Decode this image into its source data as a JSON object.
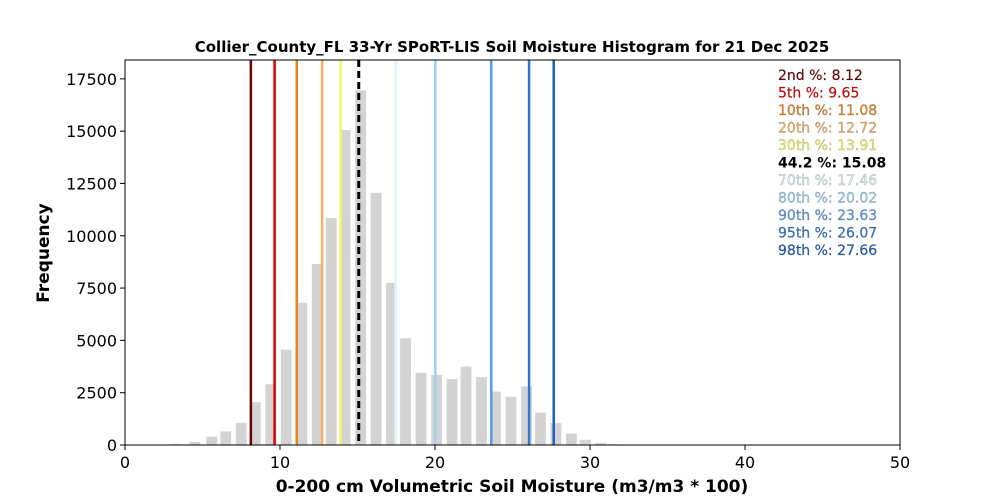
{
  "chart_data": {
    "type": "bar",
    "title": "Collier_County_FL 33-Yr SPoRT-LIS Soil Moisture Histogram for 21 Dec 2025",
    "xlabel": "0-200 cm Volumetric Soil Moisture (m3/m3 * 100)",
    "ylabel": "Frequency",
    "xlim": [
      0,
      50
    ],
    "ylim": [
      0,
      18400
    ],
    "xticks": [
      0,
      10,
      20,
      30,
      40,
      50
    ],
    "yticks": [
      0,
      2500,
      5000,
      7500,
      10000,
      12500,
      15000,
      17500
    ],
    "bar_color": "#d3d3d3",
    "bin_centers": [
      3.3,
      4.5,
      5.6,
      6.5,
      7.5,
      8.4,
      9.4,
      10.4,
      11.4,
      12.4,
      13.3,
      14.2,
      15.2,
      16.2,
      17.2,
      18.1,
      19.1,
      20.1,
      21.1,
      22.0,
      23.0,
      23.9,
      24.9,
      25.9,
      26.8,
      27.8,
      28.8,
      29.7,
      30.7,
      31.6
    ],
    "values": [
      40,
      150,
      400,
      650,
      1050,
      2050,
      2900,
      4550,
      6800,
      8650,
      10850,
      15050,
      16950,
      12050,
      7750,
      5100,
      3450,
      3350,
      3150,
      3750,
      3250,
      2550,
      2300,
      2800,
      1550,
      1050,
      550,
      250,
      100,
      30
    ],
    "reference_lines": [
      {
        "label": "2nd %",
        "value": 8.12,
        "color": "#6b0000",
        "text": "2nd %: 8.12",
        "dashed": false
      },
      {
        "label": "5th %",
        "value": 9.65,
        "color": "#dd0000",
        "text": "5th %: 9.65",
        "dashed": false
      },
      {
        "label": "10th %",
        "value": 11.08,
        "color": "#e8821e",
        "text": "10th %: 11.08",
        "dashed": false
      },
      {
        "label": "20th %",
        "value": 12.72,
        "color": "#f5b266",
        "text": "20th %: 12.72",
        "dashed": false
      },
      {
        "label": "30th %",
        "value": 13.91,
        "color": "#f5f56a",
        "text": "30th %: 13.91",
        "dashed": false
      },
      {
        "label": "44.2 %",
        "value": 15.08,
        "color": "#000000",
        "text": "44.2 %: 15.08",
        "dashed": true
      },
      {
        "label": "70th %",
        "value": 17.46,
        "color": "#dff5f7",
        "text": "70th %: 17.46",
        "dashed": false
      },
      {
        "label": "80th %",
        "value": 20.02,
        "color": "#9fd0f5",
        "text": "80th %: 20.02",
        "dashed": false
      },
      {
        "label": "90th %",
        "value": 23.63,
        "color": "#5a9be8",
        "text": "90th %: 23.63",
        "dashed": false
      },
      {
        "label": "95th %",
        "value": 26.07,
        "color": "#2f78d6",
        "text": "95th %: 26.07",
        "dashed": false
      },
      {
        "label": "98th %",
        "value": 27.66,
        "color": "#1d5fc0",
        "text": "98th %: 27.66",
        "dashed": false
      }
    ],
    "legend_placement": "top-right",
    "grid": false
  }
}
